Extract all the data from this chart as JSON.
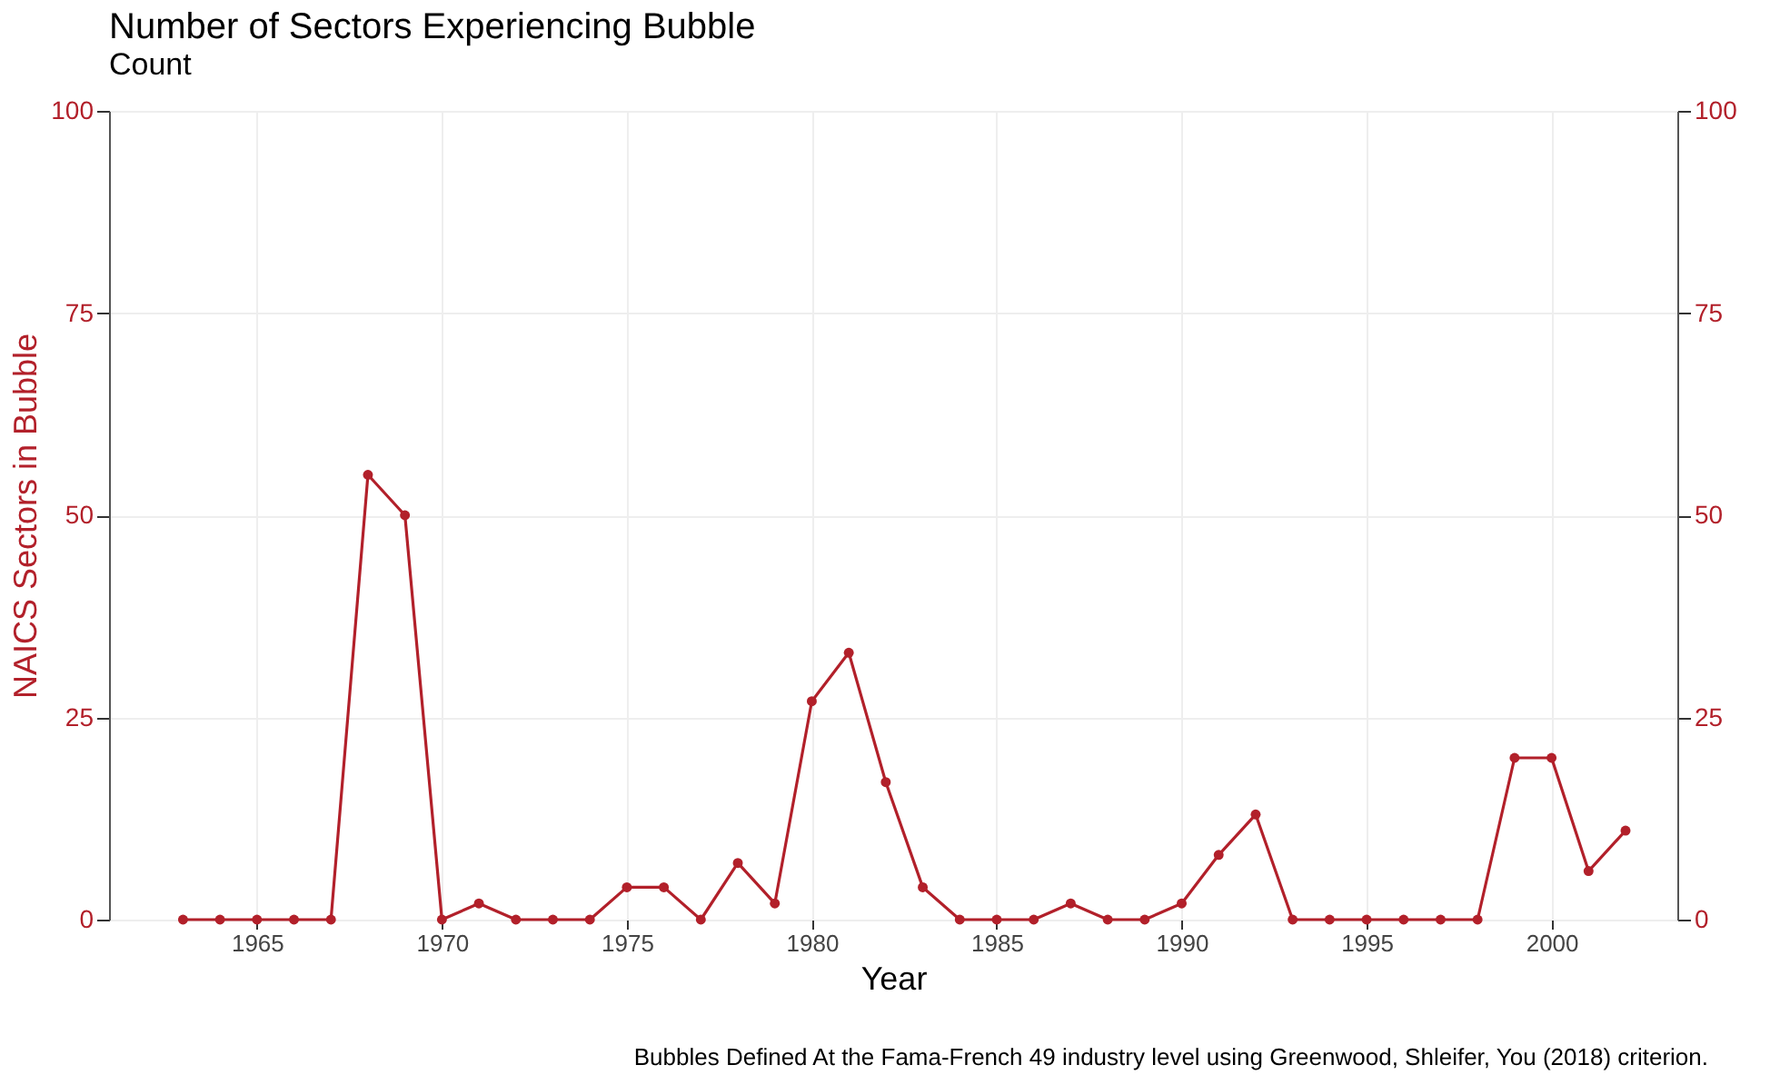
{
  "chart_data": {
    "type": "line",
    "title": "Number of Sectors Experiencing Bubble",
    "subtitle": "Count",
    "xlabel": "Year",
    "ylabel": "NAICS Sectors in Bubble",
    "annotations": [
      "Bubbles Defined At the Fama-French 49 industry level using Greenwood, Shleifer, You (2018) criterion."
    ],
    "x": [
      1963,
      1964,
      1965,
      1966,
      1967,
      1968,
      1969,
      1970,
      1971,
      1972,
      1973,
      1974,
      1975,
      1976,
      1977,
      1978,
      1979,
      1980,
      1981,
      1982,
      1983,
      1984,
      1985,
      1986,
      1987,
      1988,
      1989,
      1990,
      1991,
      1992,
      1993,
      1994,
      1995,
      1996,
      1997,
      1998,
      1999,
      2000,
      2001,
      2002
    ],
    "series": [
      {
        "color": "#b2202a",
        "values": [
          0,
          0,
          0,
          0,
          0,
          55,
          50,
          0,
          2,
          0,
          0,
          0,
          4,
          4,
          0,
          7,
          2,
          27,
          33,
          17,
          4,
          0,
          0,
          0,
          2,
          0,
          0,
          2,
          8,
          13,
          0,
          0,
          0,
          0,
          0,
          0,
          20,
          20,
          6,
          11
        ]
      }
    ],
    "xlim": [
      1961,
      2003.4
    ],
    "xticks": [
      1965,
      1970,
      1975,
      1980,
      1985,
      1990,
      1995,
      2000
    ],
    "ylim": [
      0,
      100
    ],
    "yticks": [
      0,
      25,
      50,
      75,
      100
    ],
    "y2lim": [
      0,
      100
    ],
    "y2ticks": [
      0,
      25,
      50,
      75,
      100
    ],
    "grid": true,
    "marker": "circle",
    "line_style": "solid"
  }
}
